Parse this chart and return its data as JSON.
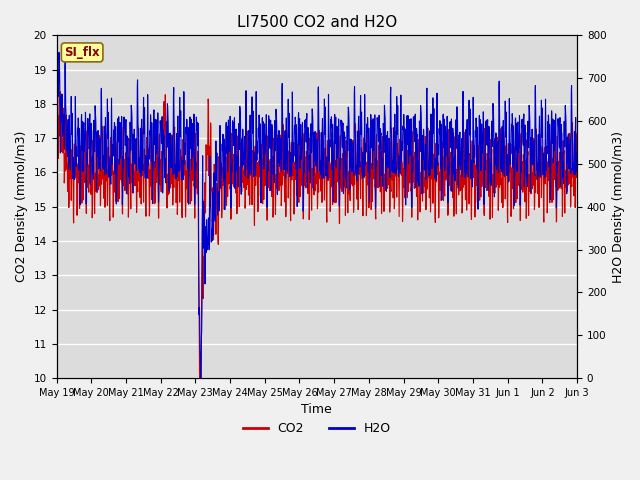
{
  "title": "LI7500 CO2 and H2O",
  "xlabel": "Time",
  "ylabel_left": "CO2 Density (mmol/m3)",
  "ylabel_right": "H2O Density (mmol/m3)",
  "ylim_left": [
    10.0,
    20.0
  ],
  "ylim_right": [
    0,
    800
  ],
  "yticks_left": [
    10.0,
    11.0,
    12.0,
    13.0,
    14.0,
    15.0,
    16.0,
    17.0,
    18.0,
    19.0,
    20.0
  ],
  "yticks_right": [
    0,
    100,
    200,
    300,
    400,
    500,
    600,
    700,
    800
  ],
  "xtick_labels": [
    "May 19",
    "May 20",
    "May 21",
    "May 22",
    "May 23",
    "May 24",
    "May 25",
    "May 26",
    "May 27",
    "May 28",
    "May 29",
    "May 30",
    "May 31",
    "Jun 1",
    "Jun 2",
    "Jun 3"
  ],
  "annotation_text": "SI_flx",
  "co2_color": "#CC0000",
  "h2o_color": "#0000CC",
  "background_color": "#DCDCDC",
  "fig_facecolor": "#F0F0F0",
  "grid_color": "#FFFFFF",
  "line_width": 0.8,
  "legend_co2": "CO2",
  "legend_h2o": "H2O",
  "title_fontsize": 11,
  "axis_fontsize": 9,
  "tick_fontsize": 7.5,
  "legend_fontsize": 9
}
